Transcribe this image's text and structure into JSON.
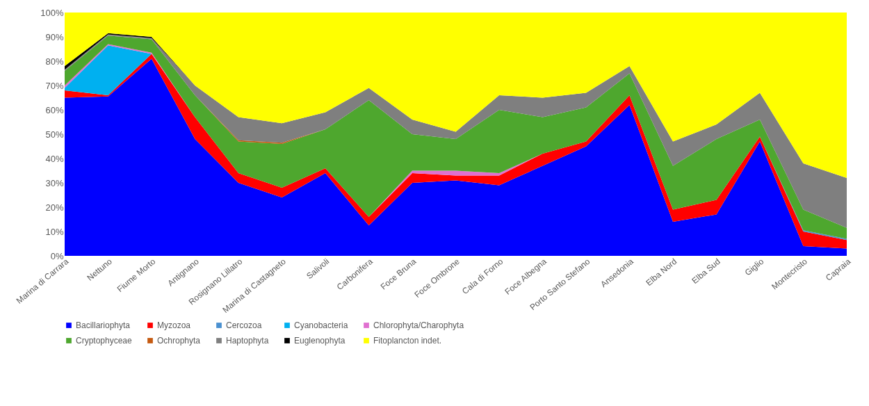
{
  "chart_data": {
    "type": "area",
    "stacked": true,
    "categories": [
      "Marina di Carrara",
      "Nettuno",
      "Fiume Morto",
      "Antignano",
      "Rosignano Lillatro",
      "Marina di Castagneto",
      "Salivoli",
      "Carbonifera",
      "Foce Bruna",
      "Foce Ombrone",
      "Cala di Forno",
      "Foce Albegna",
      "Porto Santo Stefano",
      "Ansedonia",
      "Elba Nord",
      "Elba Sud",
      "Giglio",
      "Montecristo",
      "Capraia"
    ],
    "series": [
      {
        "name": "Bacillariophyta",
        "color": "#0000ff",
        "values": [
          65,
          65.5,
          81,
          48,
          30,
          24,
          34,
          12.5,
          30,
          31,
          29,
          37,
          45,
          62,
          14,
          17,
          47,
          4,
          3
        ]
      },
      {
        "name": "Myzozoa",
        "color": "#ff0000",
        "values": [
          3,
          0.5,
          2,
          9,
          4,
          4,
          2,
          3.5,
          4,
          2,
          4,
          5,
          2,
          4,
          5,
          6,
          2,
          6,
          3.5
        ]
      },
      {
        "name": "Cercozoa",
        "color": "#4a90d0",
        "values": [
          0,
          0,
          0,
          0,
          0,
          0,
          0,
          0,
          0,
          0,
          0,
          0,
          0,
          0,
          0,
          0,
          0,
          0.5,
          0.5
        ]
      },
      {
        "name": "Cyanobacteria",
        "color": "#00b0f0",
        "values": [
          1,
          20.5,
          0,
          0,
          0,
          0,
          0,
          0,
          0,
          0,
          0,
          0,
          0,
          0,
          0,
          0,
          0,
          0,
          0
        ]
      },
      {
        "name": "Chlorophyta/Charophyta",
        "color": "#e070d0",
        "values": [
          1,
          0.5,
          0.5,
          0,
          0,
          0,
          0,
          0,
          1,
          2,
          1,
          0,
          0,
          0,
          0,
          0,
          0,
          0,
          0
        ]
      },
      {
        "name": "Cryptophyceae",
        "color": "#4ea72e",
        "values": [
          6,
          3.5,
          5.5,
          9,
          13,
          18,
          16,
          48,
          15,
          13,
          26,
          15,
          14,
          9,
          18,
          25,
          7,
          8.5,
          4.5
        ]
      },
      {
        "name": "Ochrophyta",
        "color": "#c55a11",
        "values": [
          0,
          0,
          0,
          0,
          0.5,
          0.5,
          0,
          0,
          0,
          0,
          0,
          0,
          0,
          0,
          0,
          0,
          0,
          0,
          0
        ]
      },
      {
        "name": "Haptophyta",
        "color": "#7f7f7f",
        "values": [
          0.5,
          0.5,
          0.5,
          4,
          9.5,
          8,
          7,
          5,
          6,
          3,
          6,
          8,
          6,
          3,
          10,
          6,
          11,
          19,
          20.5
        ]
      },
      {
        "name": "Euglenophyta",
        "color": "#000000",
        "values": [
          1.5,
          0.5,
          0.5,
          0,
          0,
          0,
          0,
          0,
          0,
          0,
          0,
          0,
          0,
          0,
          0,
          0,
          0,
          0,
          0
        ]
      },
      {
        "name": "Fitoplancton indet.",
        "color": "#ffff00",
        "values": [
          22,
          8.5,
          10,
          30,
          43,
          45.5,
          41,
          31,
          44,
          49,
          34,
          35,
          33,
          22,
          53,
          46,
          33,
          62,
          68
        ]
      }
    ],
    "ylim": [
      0,
      100
    ],
    "yticks": [
      {
        "value": 0,
        "label": "0%"
      },
      {
        "value": 10,
        "label": "10%"
      },
      {
        "value": 20,
        "label": "20%"
      },
      {
        "value": 30,
        "label": "30%"
      },
      {
        "value": 40,
        "label": "40%"
      },
      {
        "value": 50,
        "label": "50%"
      },
      {
        "value": 60,
        "label": "60%"
      },
      {
        "value": 70,
        "label": "70%"
      },
      {
        "value": 80,
        "label": "80%"
      },
      {
        "value": 90,
        "label": "90%"
      },
      {
        "value": 100,
        "label": "100%"
      }
    ],
    "grid": false,
    "legend": "bottom"
  }
}
